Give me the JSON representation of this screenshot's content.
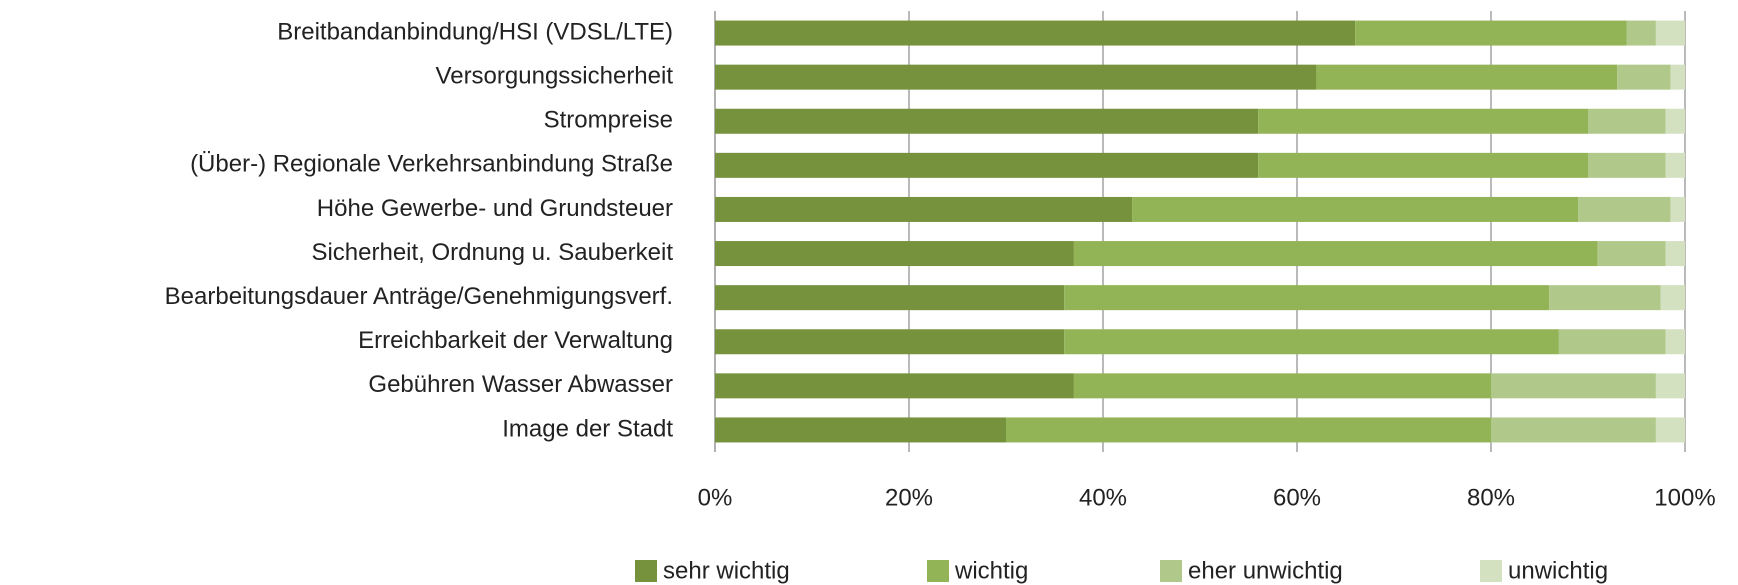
{
  "chart_data": {
    "type": "bar",
    "orientation": "horizontal",
    "stacked": true,
    "categories": [
      "Breitbandanbindung/HSI (VDSL/LTE)",
      "Versorgungssicherheit",
      "Strompreise",
      "(Über-) Regionale Verkehrsanbindung Straße",
      "Höhe Gewerbe- und Grundsteuer",
      "Sicherheit, Ordnung u. Sauberkeit",
      "Bearbeitungsdauer Anträge/Genehmigungsverf.",
      "Erreichbarkeit der Verwaltung",
      "Gebühren Wasser Abwasser",
      "Image der Stadt"
    ],
    "series": [
      {
        "name": "sehr wichtig",
        "color": "#76923c",
        "values": [
          66,
          62,
          56,
          56,
          43,
          37,
          36,
          36,
          37,
          30
        ]
      },
      {
        "name": "wichtig",
        "color": "#92b456",
        "values": [
          28,
          31,
          34,
          34,
          46,
          54,
          50,
          51,
          43,
          50
        ]
      },
      {
        "name": "eher unwichtig",
        "color": "#b0c98a",
        "values": [
          3,
          5.5,
          8,
          8,
          9.5,
          7,
          11.5,
          11,
          17,
          17
        ]
      },
      {
        "name": "unwichtig",
        "color": "#d4e1c0",
        "values": [
          3,
          1.5,
          2,
          2,
          1.5,
          2,
          2.5,
          2,
          3,
          3
        ]
      }
    ],
    "xlim": [
      0,
      100
    ],
    "xticks": [
      {
        "value": 0,
        "label": "0%"
      },
      {
        "value": 20,
        "label": "20%"
      },
      {
        "value": 40,
        "label": "40%"
      },
      {
        "value": 60,
        "label": "60%"
      },
      {
        "value": 80,
        "label": "80%"
      },
      {
        "value": 100,
        "label": "100%"
      }
    ],
    "grid": true,
    "legend": "bottom"
  }
}
